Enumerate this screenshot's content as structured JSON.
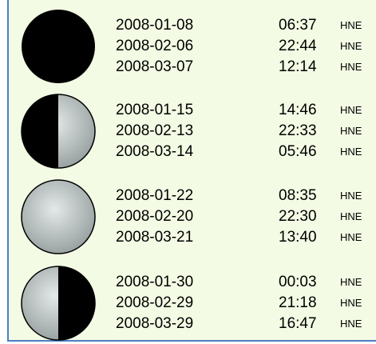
{
  "phases": [
    {
      "rows": [
        {
          "date": "2008-01-08",
          "time": "06:37",
          "zone": "HNE"
        },
        {
          "date": "2008-02-06",
          "time": "22:44",
          "zone": "HNE"
        },
        {
          "date": "2008-03-07",
          "time": "12:14",
          "zone": "HNE"
        }
      ]
    },
    {
      "rows": [
        {
          "date": "2008-01-15",
          "time": "14:46",
          "zone": "HNE"
        },
        {
          "date": "2008-02-13",
          "time": "22:33",
          "zone": "HNE"
        },
        {
          "date": "2008-03-14",
          "time": "05:46",
          "zone": "HNE"
        }
      ]
    },
    {
      "rows": [
        {
          "date": "2008-01-22",
          "time": "08:35",
          "zone": "HNE"
        },
        {
          "date": "2008-02-20",
          "time": "22:30",
          "zone": "HNE"
        },
        {
          "date": "2008-03-21",
          "time": "13:40",
          "zone": "HNE"
        }
      ]
    },
    {
      "rows": [
        {
          "date": "2008-01-30",
          "time": "00:03",
          "zone": "HNE"
        },
        {
          "date": "2008-02-29",
          "time": "21:18",
          "zone": "HNE"
        },
        {
          "date": "2008-03-29",
          "time": "16:47",
          "zone": "HNE"
        }
      ]
    }
  ]
}
